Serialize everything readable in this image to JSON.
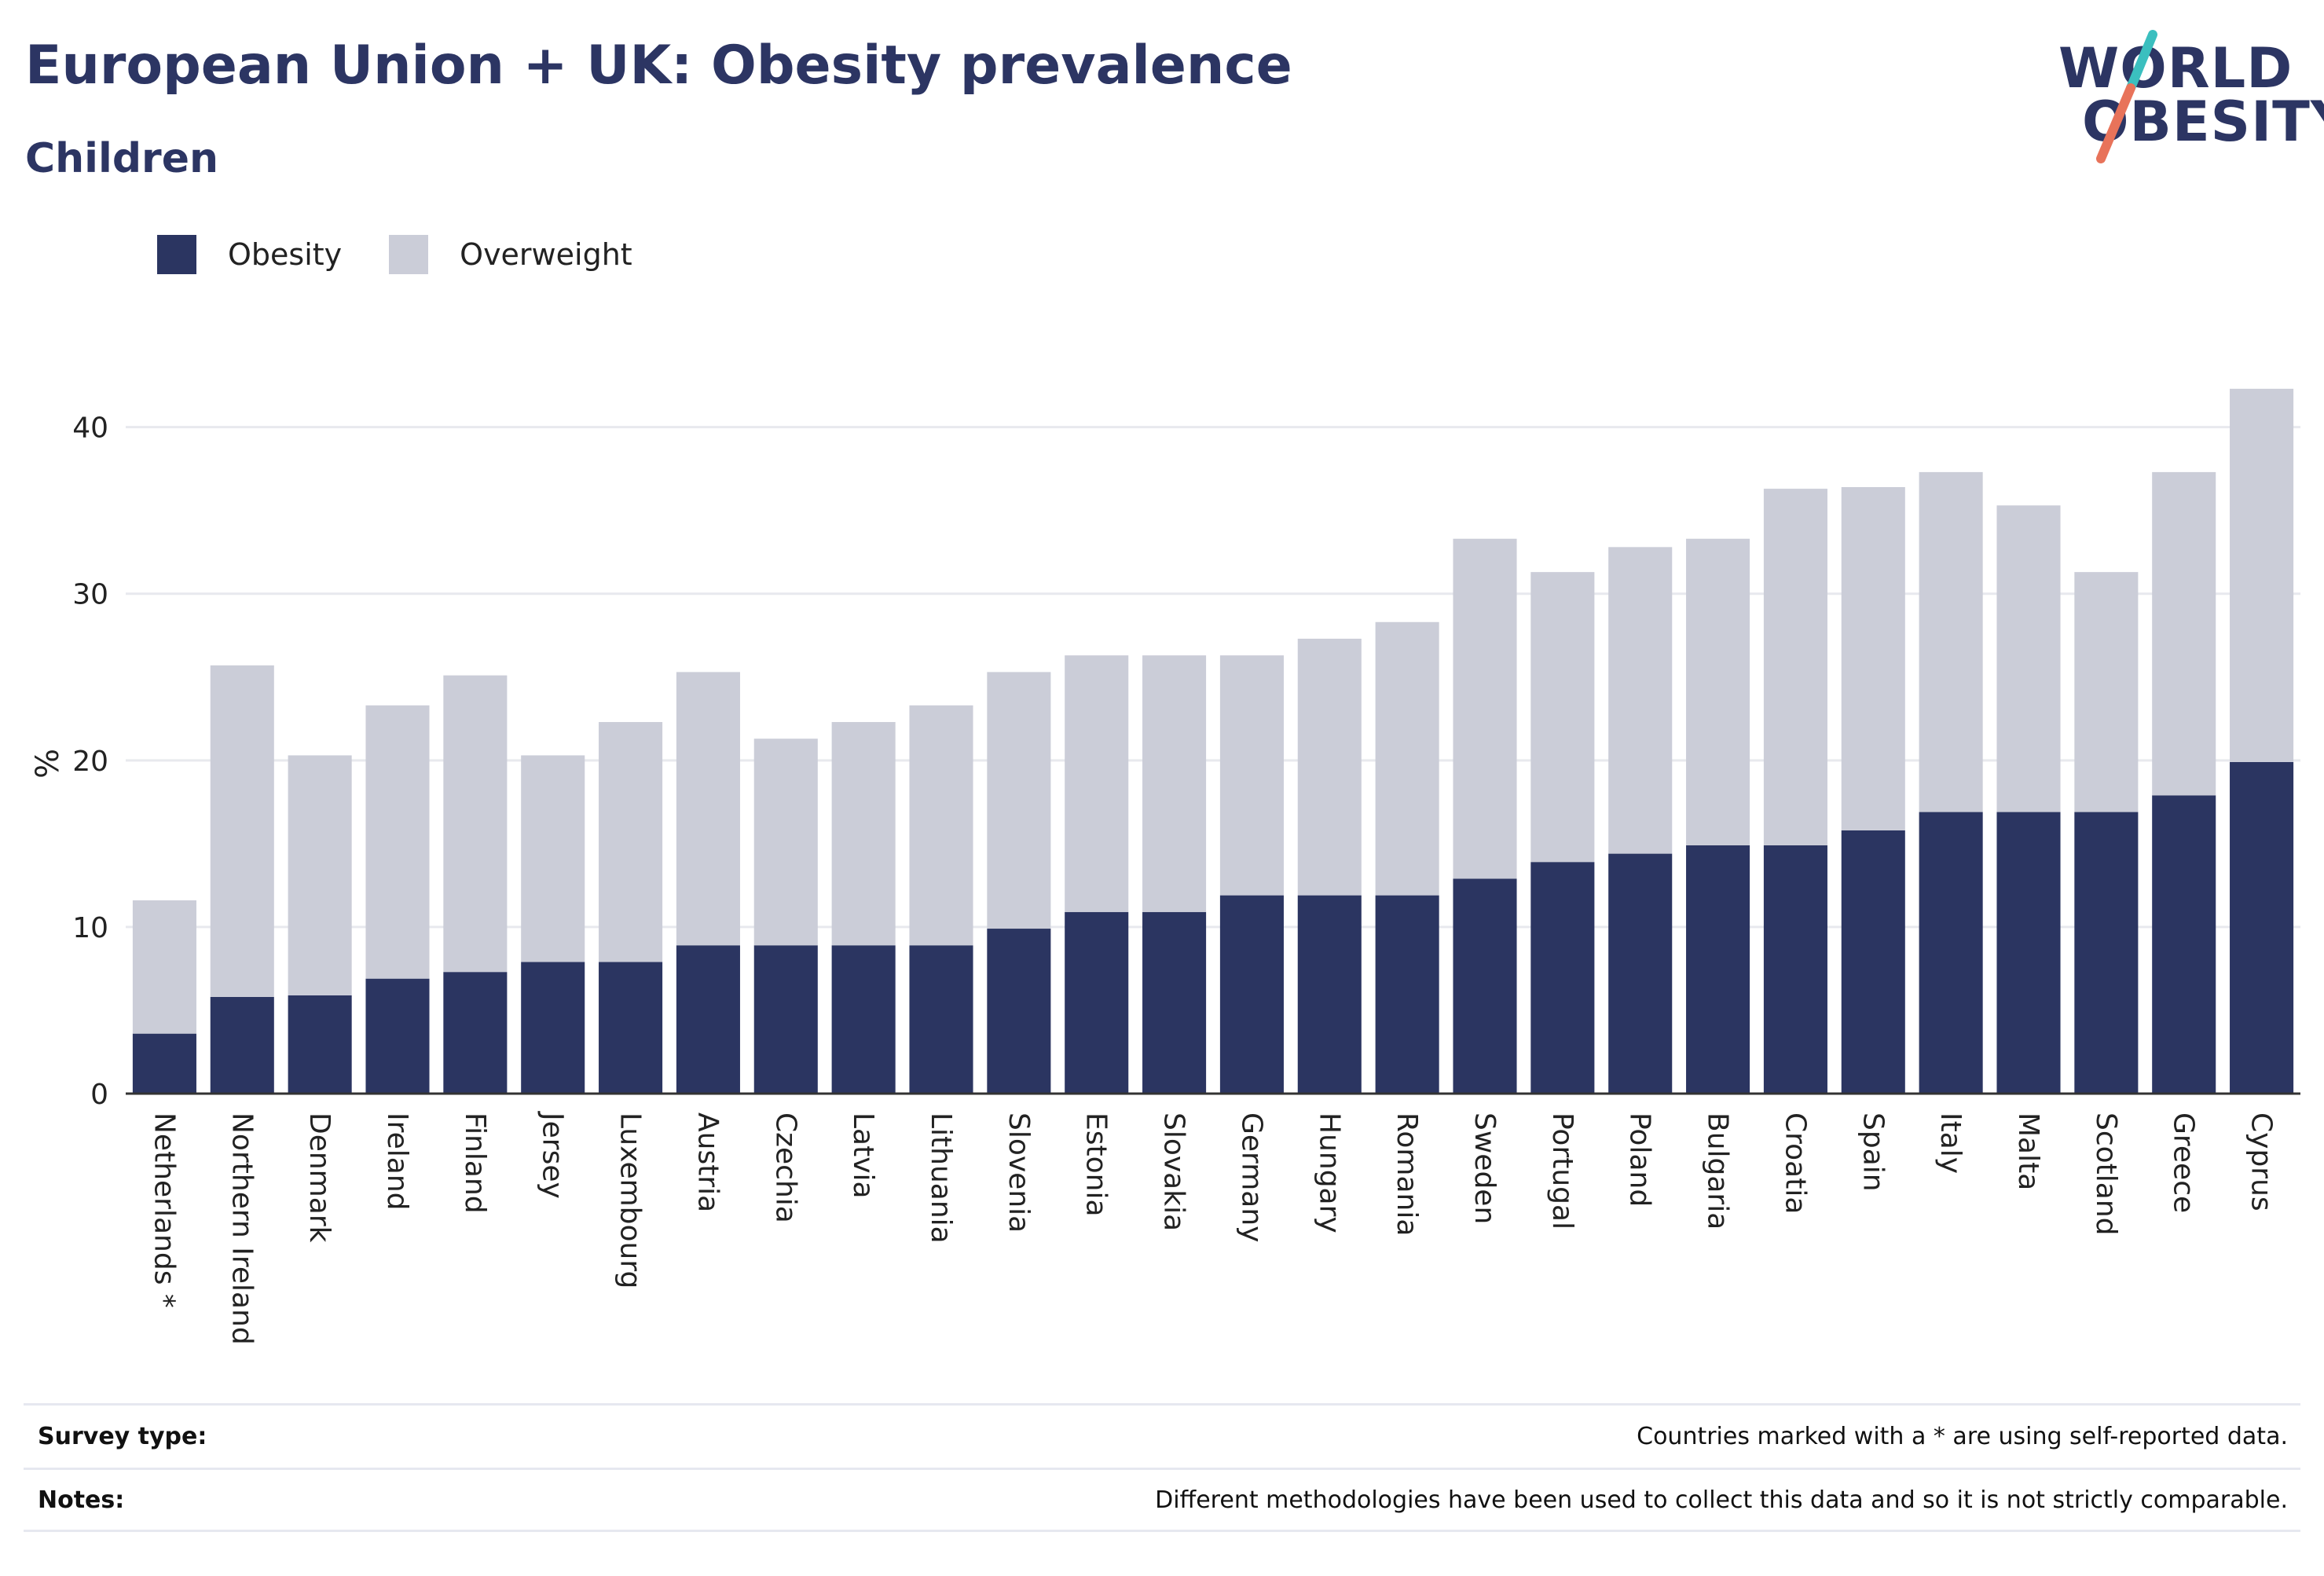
{
  "title": "European Union + UK: Obesity prevalence",
  "subtitle": "Children",
  "logo": {
    "line1": "WORLD",
    "line2": "OBESITY",
    "accent_top": "#3bbfbf",
    "accent_bottom": "#e8735a"
  },
  "legend": [
    {
      "label": "Obesity",
      "color": "#2b3561"
    },
    {
      "label": "Overweight",
      "color": "#cbcdd8"
    }
  ],
  "footer": {
    "survey_key": "Survey type:",
    "survey_value": "Countries marked with a * are using self-reported data.",
    "notes_key": "Notes:",
    "notes_value": "Different methodologies have been used to collect this data and so it is not strictly comparable."
  },
  "chart_data": {
    "type": "bar",
    "stacked": true,
    "ylabel": "%",
    "xlabel": "",
    "ylim": [
      0,
      43
    ],
    "yticks": [
      0,
      10,
      20,
      30,
      40
    ],
    "grid": true,
    "legend_position": "top-left",
    "categories": [
      "Netherlands *",
      "Northern Ireland",
      "Denmark",
      "Ireland",
      "Finland",
      "Jersey",
      "Luxembourg",
      "Austria",
      "Czechia",
      "Latvia",
      "Lithuania",
      "Slovenia",
      "Estonia",
      "Slovakia",
      "Germany",
      "Hungary",
      "Romania",
      "Sweden",
      "Portugal",
      "Poland",
      "Bulgaria",
      "Croatia",
      "Spain",
      "Italy",
      "Malta",
      "Scotland",
      "Greece",
      "Cyprus"
    ],
    "series": [
      {
        "name": "Obesity",
        "color": "#2b3561",
        "values": [
          3.6,
          5.8,
          5.9,
          6.9,
          7.3,
          7.9,
          7.9,
          8.9,
          8.9,
          8.9,
          8.9,
          9.9,
          10.9,
          10.9,
          11.9,
          11.9,
          11.9,
          12.9,
          13.9,
          14.4,
          14.9,
          14.9,
          15.8,
          16.9,
          16.9,
          16.9,
          17.9,
          19.9
        ]
      },
      {
        "name": "Overweight",
        "color": "#cbcdd8",
        "values": [
          8.0,
          19.9,
          14.4,
          16.4,
          17.8,
          12.4,
          14.4,
          16.4,
          12.4,
          13.4,
          14.4,
          15.4,
          15.4,
          15.4,
          14.4,
          15.4,
          16.4,
          20.4,
          17.4,
          18.4,
          18.4,
          21.4,
          20.6,
          20.4,
          18.4,
          14.4,
          19.4,
          22.4
        ]
      }
    ]
  }
}
